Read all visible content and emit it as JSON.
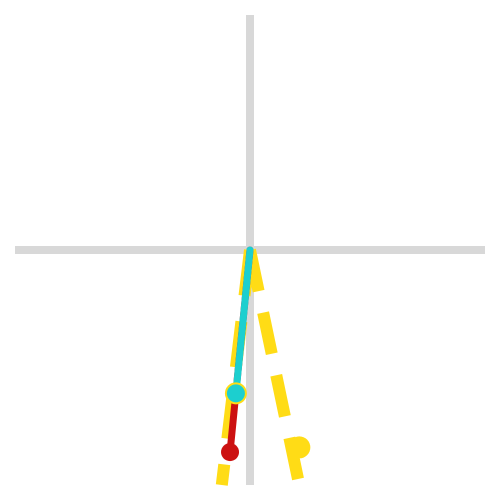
{
  "colors": {
    "background": "#ffffff",
    "axis": "#d8d8d8",
    "dashed_lines": "#ffdc16",
    "solid_line_lower": "#cc1111",
    "solid_line_upper": "#1ccfcf",
    "marker_yellow": "#ffdc16",
    "marker_red": "#cc1111",
    "marker_cyan": "#1ccfcf"
  },
  "axes": {
    "x_range": [
      -1,
      1
    ],
    "y_range": [
      -1,
      1
    ]
  },
  "vectors": {
    "dashed_right": {
      "end": [
        0.21,
        -0.84
      ]
    },
    "dashed_left": {
      "end": [
        -0.12,
        -1.0
      ]
    },
    "solid_red": {
      "end": [
        -0.085,
        -0.86
      ]
    },
    "solid_cyan": {
      "end": [
        -0.06,
        -0.61
      ]
    }
  },
  "markers": {
    "yellow_right": {
      "point": [
        0.21,
        -0.84
      ]
    },
    "yellow_left": {
      "point": [
        -0.06,
        -0.61
      ]
    },
    "red": {
      "point": [
        -0.085,
        -0.86
      ]
    },
    "cyan": {
      "point": [
        -0.06,
        -0.61
      ]
    }
  }
}
